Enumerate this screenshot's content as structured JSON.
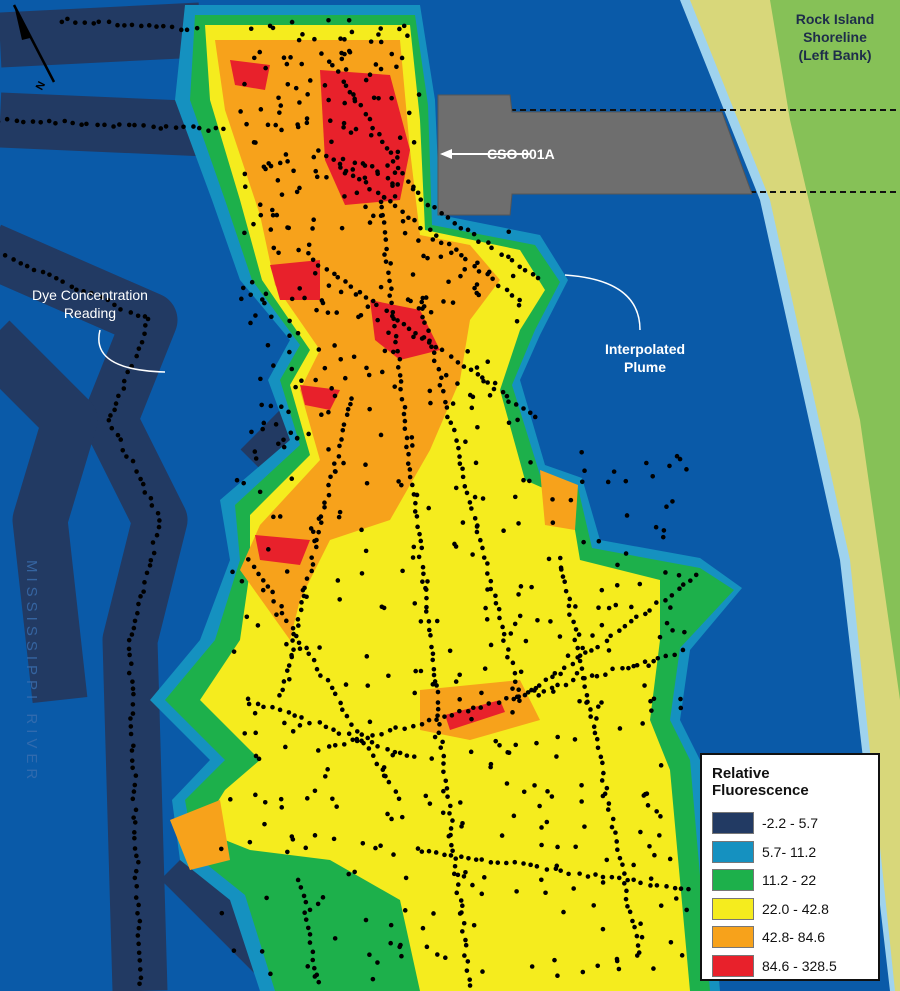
{
  "labels": {
    "shoreline": "Rock Island Shoreline",
    "shoreline_sub": "(Left Bank)",
    "cso": "CSO 001A",
    "dye_reading": "Dye Concentration Reading",
    "plume": "Interpolated Plume",
    "river": "MISSISSIPPI RIVER",
    "north": "N"
  },
  "legend": {
    "title": "Relative Fluorescence",
    "classes": [
      {
        "range": "-2.2 - 5.7",
        "color": "#223a63"
      },
      {
        "range": "5.7- 11.2",
        "color": "#1591c0"
      },
      {
        "range": "11.2 - 22",
        "color": "#1db04b"
      },
      {
        "range": "22.0 - 42.8",
        "color": "#f5ec1e"
      },
      {
        "range": "42.8- 84.6",
        "color": "#f7a21b"
      },
      {
        "range": "84.6 - 328.5",
        "color": "#e8212b"
      }
    ]
  },
  "colors": {
    "water": "#0a5aa8",
    "pier": "#6e6e6e",
    "bank_sand": "#d8d77a",
    "bank_grass": "#86c157"
  }
}
